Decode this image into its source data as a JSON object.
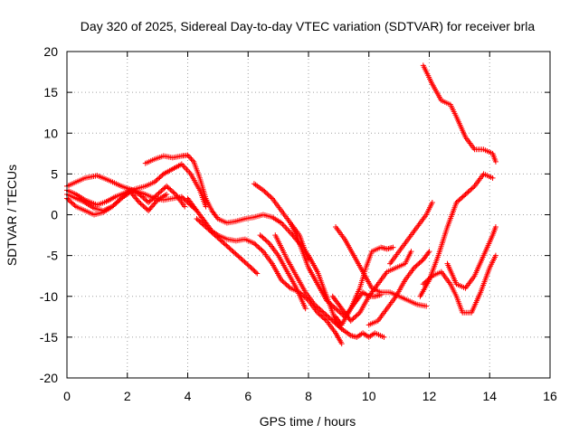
{
  "chart_data": {
    "type": "scatter",
    "title": "Day 320 of 2025, Sidereal Day-to-day VTEC variation (SDTVAR) for receiver brla",
    "xlabel": "GPS time / hours",
    "ylabel": "SDTVAR / TECUs",
    "xlim": [
      0,
      16
    ],
    "ylim": [
      -20,
      20
    ],
    "x_ticks": [
      "0",
      "2",
      "4",
      "6",
      "8",
      "10",
      "12",
      "14",
      "16"
    ],
    "y_ticks": [
      "-20",
      "-15",
      "-10",
      "-5",
      "0",
      "5",
      "10",
      "15",
      "20"
    ],
    "grid": true,
    "marker": "+",
    "color": "#ff0000",
    "series": [
      {
        "x": [
          0.0,
          0.3,
          0.6,
          1.0,
          1.3,
          1.6,
          2.0,
          2.3,
          2.6,
          2.9,
          3.2,
          3.5,
          3.8,
          4.1,
          4.4,
          4.6
        ],
        "y": [
          3.0,
          2.5,
          1.8,
          1.2,
          1.6,
          2.2,
          2.8,
          3.2,
          3.5,
          4.0,
          5.0,
          5.6,
          6.2,
          5.0,
          3.0,
          1.0
        ]
      },
      {
        "x": [
          0.0,
          0.3,
          0.6,
          1.0,
          1.4,
          1.8,
          2.2,
          2.6,
          2.9,
          3.2,
          3.5,
          3.8,
          4.0,
          4.3
        ],
        "y": [
          3.5,
          4.0,
          4.5,
          4.8,
          4.2,
          3.5,
          3.0,
          2.5,
          2.0,
          1.8,
          2.0,
          2.2,
          1.5,
          0.5
        ]
      },
      {
        "x": [
          0.0,
          0.3,
          0.6,
          0.9,
          1.2,
          1.5,
          1.8,
          2.1,
          2.4,
          2.7,
          3.0,
          3.3,
          3.6,
          3.9
        ],
        "y": [
          2.5,
          2.0,
          1.5,
          0.8,
          0.5,
          1.0,
          2.0,
          3.0,
          2.5,
          1.5,
          2.5,
          3.5,
          2.5,
          1.0
        ]
      },
      {
        "x": [
          0.0,
          0.3,
          0.6,
          0.9,
          1.2,
          1.5,
          1.8,
          2.1,
          2.4,
          2.7,
          3.0,
          3.3
        ],
        "y": [
          2.0,
          1.0,
          0.5,
          0.0,
          0.3,
          1.0,
          2.0,
          2.8,
          1.5,
          0.5,
          1.8,
          2.5
        ]
      },
      {
        "x": [
          2.6,
          2.9,
          3.2,
          3.5,
          3.8,
          4.0,
          4.2,
          4.4,
          4.6,
          4.8,
          5.0,
          5.3,
          5.6,
          5.9,
          6.2,
          6.5,
          6.8,
          7.1,
          7.4,
          7.7,
          8.0,
          8.3,
          8.6,
          8.9,
          9.1
        ],
        "y": [
          6.3,
          6.8,
          7.2,
          7.0,
          7.2,
          7.3,
          6.5,
          4.5,
          2.0,
          0.5,
          -0.5,
          -1.0,
          -0.8,
          -0.5,
          -0.3,
          0.0,
          -0.3,
          -1.0,
          -2.2,
          -3.5,
          -5.0,
          -7.0,
          -10.0,
          -13.0,
          -14.0
        ]
      },
      {
        "x": [
          4.0,
          4.2,
          4.4,
          4.6,
          4.8,
          5.0,
          5.3,
          5.6,
          5.9,
          6.2,
          6.5,
          6.8,
          7.1,
          7.4,
          7.7,
          8.0,
          8.3,
          8.6,
          8.9,
          9.1
        ],
        "y": [
          2.0,
          1.0,
          0.0,
          -1.0,
          -2.0,
          -2.5,
          -3.0,
          -3.2,
          -3.0,
          -3.5,
          -4.5,
          -6.0,
          -8.0,
          -9.0,
          -9.5,
          -10.5,
          -12.0,
          -13.0,
          -14.5,
          -15.8
        ]
      },
      {
        "x": [
          4.3,
          4.6,
          4.9,
          5.2,
          5.5,
          5.8,
          6.1,
          6.3
        ],
        "y": [
          -0.5,
          -1.5,
          -2.5,
          -3.5,
          -4.5,
          -5.5,
          -6.5,
          -7.2
        ]
      },
      {
        "x": [
          6.2,
          6.5,
          6.8,
          7.1,
          7.4,
          7.7,
          8.0
        ],
        "y": [
          3.8,
          3.0,
          2.0,
          0.5,
          -1.0,
          -2.5,
          -5.5
        ]
      },
      {
        "x": [
          6.4,
          6.7,
          7.0,
          7.3,
          7.6,
          7.9
        ],
        "y": [
          -2.5,
          -3.5,
          -5.0,
          -7.0,
          -9.0,
          -11.5
        ]
      },
      {
        "x": [
          6.9,
          7.1,
          7.3,
          7.6,
          7.9,
          8.2,
          8.5,
          8.8,
          9.1,
          9.4,
          9.6,
          9.8,
          10.0,
          10.2,
          10.5
        ],
        "y": [
          -2.5,
          -4.0,
          -5.5,
          -7.5,
          -9.5,
          -11.0,
          -12.0,
          -13.0,
          -14.0,
          -14.8,
          -15.0,
          -14.5,
          -15.0,
          -14.5,
          -15.0
        ]
      },
      {
        "x": [
          7.4,
          7.6,
          7.8,
          8.0,
          8.3,
          8.6,
          8.9,
          9.2,
          9.4,
          9.6,
          9.8,
          10.0,
          10.2,
          10.4
        ],
        "y": [
          -1.0,
          -2.5,
          -4.5,
          -6.5,
          -8.5,
          -10.5,
          -11.5,
          -12.5,
          -11.5,
          -10.5,
          -9.5,
          -10.0,
          -10.0,
          -9.8
        ]
      },
      {
        "x": [
          8.8,
          9.0,
          9.2,
          9.4,
          9.7,
          10.0,
          10.3,
          10.6,
          10.9,
          11.2,
          11.4
        ],
        "y": [
          -10.0,
          -11.0,
          -12.0,
          -13.0,
          -12.0,
          -10.0,
          -8.5,
          -7.0,
          -6.5,
          -6.0,
          -4.5
        ]
      },
      {
        "x": [
          8.9,
          9.1,
          9.4,
          9.7,
          9.9,
          10.1,
          10.4,
          10.6,
          10.8
        ],
        "y": [
          -12.5,
          -13.5,
          -11.5,
          -9.0,
          -6.5,
          -4.5,
          -4.0,
          -4.2,
          -4.0
        ]
      },
      {
        "x": [
          8.9,
          9.2,
          9.5,
          9.8,
          10.1,
          10.4,
          10.7,
          11.0,
          11.3,
          11.6,
          11.9
        ],
        "y": [
          -1.5,
          -3.0,
          -5.0,
          -7.0,
          -9.0,
          -9.5,
          -9.5,
          -10.0,
          -10.5,
          -11.0,
          -11.2
        ]
      },
      {
        "x": [
          10.0,
          10.3,
          10.6,
          10.9,
          11.2,
          11.5,
          11.8,
          12.0
        ],
        "y": [
          -13.5,
          -13.0,
          -11.5,
          -10.0,
          -8.0,
          -6.5,
          -5.5,
          -4.5
        ]
      },
      {
        "x": [
          10.7,
          11.0,
          11.3,
          11.6,
          11.9,
          12.1
        ],
        "y": [
          -6.0,
          -4.5,
          -3.0,
          -1.5,
          0.0,
          1.5
        ]
      },
      {
        "x": [
          11.7,
          12.0,
          12.3,
          12.6,
          12.9,
          13.2,
          13.5,
          13.8,
          14.1
        ],
        "y": [
          -10.0,
          -8.0,
          -5.0,
          -1.5,
          1.5,
          2.5,
          3.5,
          5.0,
          4.5
        ]
      },
      {
        "x": [
          11.8,
          12.1,
          12.4,
          12.7,
          12.9,
          13.1,
          13.4,
          13.7,
          14.0,
          14.2
        ],
        "y": [
          -8.5,
          -7.5,
          -7.0,
          -8.5,
          -10.0,
          -12.0,
          -12.0,
          -9.5,
          -6.5,
          -5.0
        ]
      },
      {
        "x": [
          12.6,
          12.9,
          13.2,
          13.5,
          13.8,
          14.1,
          14.2
        ],
        "y": [
          -6.0,
          -8.5,
          -9.0,
          -7.5,
          -5.0,
          -2.5,
          -1.5
        ]
      },
      {
        "x": [
          11.8,
          12.1,
          12.4,
          12.7,
          12.9,
          13.2,
          13.5,
          13.8,
          14.1,
          14.2
        ],
        "y": [
          18.3,
          16.0,
          14.0,
          13.5,
          12.0,
          9.5,
          8.0,
          8.0,
          7.5,
          6.5
        ]
      }
    ]
  }
}
